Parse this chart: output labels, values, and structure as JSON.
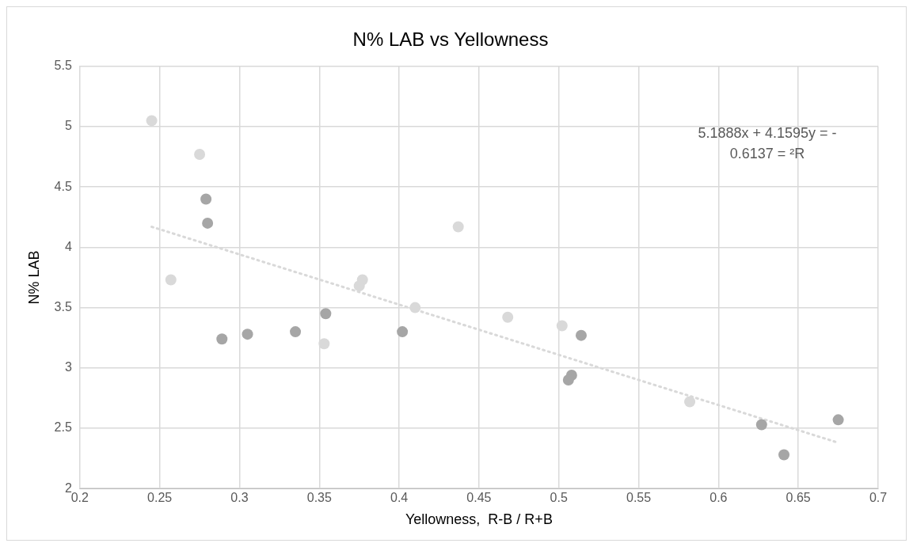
{
  "chart_data": {
    "type": "scatter",
    "title": "N% LAB vs Yellowness",
    "xlabel": "Yellowness,  R-B / R+B",
    "ylabel": "N% LAB",
    "annotations": [
      "5.1888x + 4.1595y = -",
      "0.6137 = ²R"
    ],
    "series": [
      {
        "x": [
          0.245,
          0.275,
          0.257,
          0.437,
          0.377,
          0.375,
          0.41,
          0.353,
          0.468,
          0.502,
          0.582,
          0.279,
          0.28,
          0.289,
          0.305,
          0.335,
          0.354,
          0.402,
          0.514,
          0.508,
          0.506,
          0.627,
          0.641,
          0.675
        ],
        "values": [
          5.05,
          4.77,
          3.73,
          4.17,
          3.73,
          3.68,
          3.5,
          3.2,
          3.42,
          3.35,
          2.72,
          4.4,
          4.2,
          3.24,
          3.28,
          3.3,
          3.45,
          3.3,
          3.27,
          2.94,
          2.9,
          2.53,
          2.28,
          2.57
        ],
        "colors": [
          "#d9d9d9",
          "#d9d9d9",
          "#d9d9d9",
          "#d9d9d9",
          "#d9d9d9",
          "#d9d9d9",
          "#d9d9d9",
          "#d9d9d9",
          "#d9d9d9",
          "#d9d9d9",
          "#d9d9d9",
          "#a6a6a6",
          "#a6a6a6",
          "#a6a6a6",
          "#a6a6a6",
          "#a6a6a6",
          "#a6a6a6",
          "#a6a6a6",
          "#a6a6a6",
          "#a6a6a6",
          "#a6a6a6",
          "#a6a6a6",
          "#a6a6a6",
          "#a6a6a6"
        ],
        "marker": "circle"
      },
      {
        "type": "line",
        "x": [
          0.245,
          0.675
        ],
        "values": [
          4.17,
          2.38
        ],
        "color": "#d9d9d9",
        "line_style": "dotted",
        "marker": "none"
      }
    ],
    "xlim": [
      0.2,
      0.7
    ],
    "xticks": [
      0.2,
      0.25,
      0.3,
      0.35,
      0.4,
      0.45,
      0.5,
      0.55,
      0.6,
      0.65,
      0.7
    ],
    "ylim": [
      2,
      5.5
    ],
    "yticks": [
      2,
      2.5,
      3,
      3.5,
      4,
      4.5,
      5,
      5.5
    ],
    "grid": true,
    "legend": false
  }
}
